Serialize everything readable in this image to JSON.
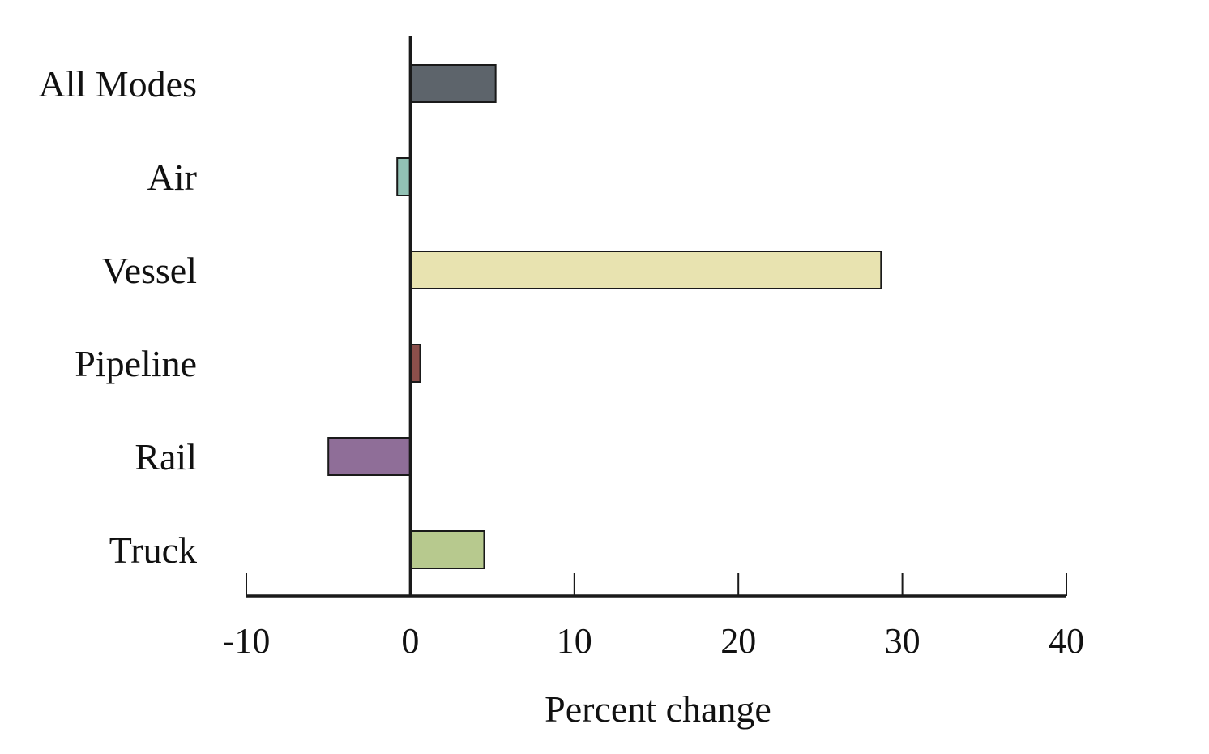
{
  "chart_data": {
    "type": "bar",
    "orientation": "horizontal",
    "categories": [
      "All Modes",
      "Air",
      "Vessel",
      "Pipeline",
      "Rail",
      "Truck"
    ],
    "values": [
      5.2,
      -0.8,
      28.7,
      0.6,
      -5.0,
      4.5
    ],
    "colors": [
      "#5d646b",
      "#92c2b5",
      "#e8e3b0",
      "#8b4f4b",
      "#8f6e98",
      "#b7c98e"
    ],
    "xlabel": "Percent change",
    "ylabel": "",
    "title": "",
    "xlim": [
      -10,
      40
    ],
    "xticks": [
      -10,
      0,
      10,
      20,
      30,
      40
    ],
    "xtick_labels": [
      "-10",
      "0",
      "10",
      "20",
      "30",
      "40"
    ],
    "grid": false,
    "legend": "none"
  }
}
